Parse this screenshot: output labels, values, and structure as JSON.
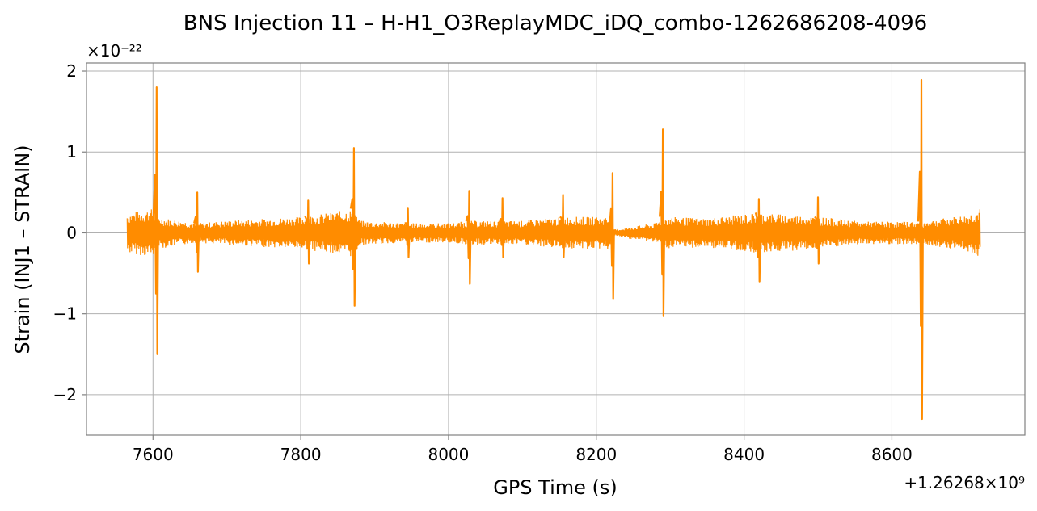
{
  "chart_data": {
    "type": "line",
    "title": "BNS Injection 11 – H-H1_O3ReplayMDC_iDQ_combo-1262686208-4096",
    "xlabel": "GPS Time (s)",
    "ylabel": "Strain (INJ1 – STRAIN)",
    "y_multiplier_label": "×10⁻²²",
    "x_offset_label": "+1.26268×10⁹",
    "x_offset": 1262680000,
    "y_scale": 1e-22,
    "xlim": [
      7510,
      8780
    ],
    "ylim": [
      -2.5,
      2.1
    ],
    "x_ticks": [
      7600,
      7800,
      8000,
      8200,
      8400,
      8600
    ],
    "x_tick_labels": [
      "7600",
      "7800",
      "8000",
      "8200",
      "8400",
      "8600"
    ],
    "y_ticks": [
      -2,
      -1,
      0,
      1,
      2
    ],
    "y_tick_labels": [
      "−2",
      "−1",
      "0",
      "1",
      "2"
    ],
    "grid": true,
    "series": [
      {
        "color": "#ff8c00",
        "x_range": [
          7565,
          8720
        ],
        "baseline_envelope": [
          [
            7565,
            0.25
          ],
          [
            7600,
            0.3
          ],
          [
            7605,
            0.2
          ],
          [
            7660,
            0.12
          ],
          [
            7700,
            0.15
          ],
          [
            7760,
            0.18
          ],
          [
            7800,
            0.2
          ],
          [
            7840,
            0.25
          ],
          [
            7872,
            0.3
          ],
          [
            7880,
            0.15
          ],
          [
            7945,
            0.12
          ],
          [
            8000,
            0.12
          ],
          [
            8030,
            0.15
          ],
          [
            8100,
            0.15
          ],
          [
            8160,
            0.2
          ],
          [
            8220,
            0.2
          ],
          [
            8222,
            0.04
          ],
          [
            8280,
            0.12
          ],
          [
            8290,
            0.2
          ],
          [
            8350,
            0.18
          ],
          [
            8420,
            0.25
          ],
          [
            8500,
            0.2
          ],
          [
            8560,
            0.14
          ],
          [
            8640,
            0.14
          ],
          [
            8700,
            0.22
          ],
          [
            8720,
            0.3
          ]
        ],
        "spikes": [
          {
            "x": 7605,
            "max": 1.8,
            "min": -1.5
          },
          {
            "x": 7660,
            "max": 0.5,
            "min": -0.48
          },
          {
            "x": 7810,
            "max": 0.4,
            "min": -0.38
          },
          {
            "x": 7872,
            "max": 1.05,
            "min": -0.9
          },
          {
            "x": 7945,
            "max": 0.3,
            "min": -0.3
          },
          {
            "x": 8028,
            "max": 0.52,
            "min": -0.63
          },
          {
            "x": 8073,
            "max": 0.43,
            "min": -0.3
          },
          {
            "x": 8155,
            "max": 0.47,
            "min": -0.3
          },
          {
            "x": 8222,
            "max": 0.74,
            "min": -0.82
          },
          {
            "x": 8290,
            "max": 1.28,
            "min": -1.03
          },
          {
            "x": 8420,
            "max": 0.42,
            "min": -0.6
          },
          {
            "x": 8500,
            "max": 0.44,
            "min": -0.38
          },
          {
            "x": 8640,
            "max": 1.89,
            "min": -2.3
          }
        ]
      }
    ]
  }
}
